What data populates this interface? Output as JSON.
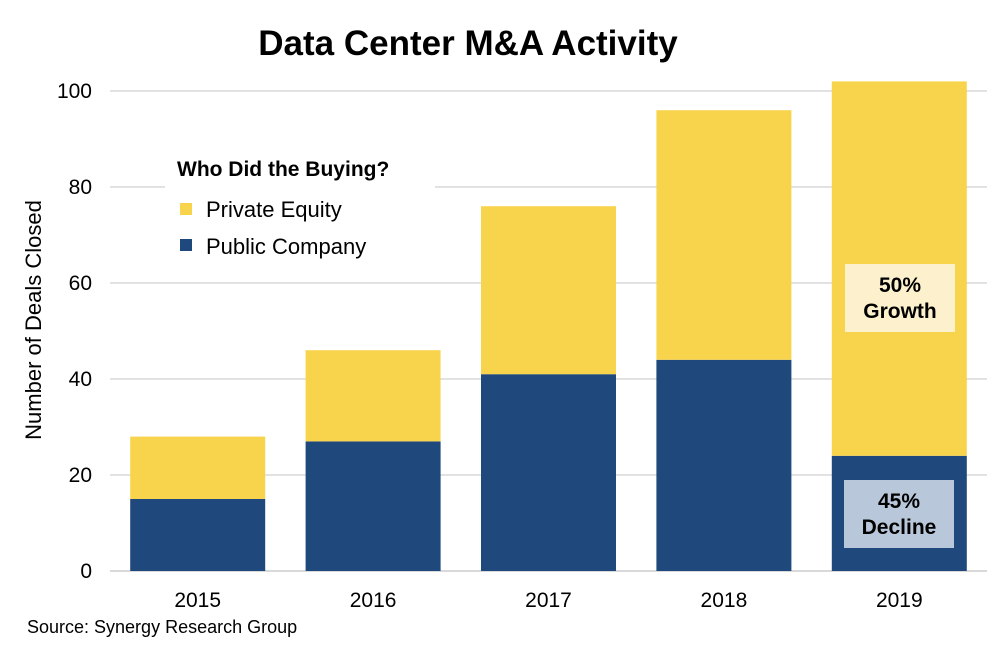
{
  "chart_data": {
    "type": "bar",
    "stacked": true,
    "title": "Data Center M&A Activity",
    "xlabel": "",
    "ylabel": "Number of Deals Closed",
    "categories": [
      "2015",
      "2016",
      "2017",
      "2018",
      "2019"
    ],
    "series": [
      {
        "name": "Public Company",
        "color": "#1f497d",
        "values": [
          15,
          27,
          41,
          44,
          24
        ]
      },
      {
        "name": "Private Equity",
        "color": "#f8d44c",
        "values": [
          13,
          19,
          35,
          52,
          78
        ]
      }
    ],
    "totals": [
      28,
      46,
      76,
      96,
      102
    ],
    "ylim": [
      0,
      100
    ],
    "yticks": [
      0,
      20,
      40,
      60,
      80,
      100
    ],
    "grid": true,
    "gridline_color": "#d9d9d9",
    "legend": {
      "title": "Who Did the Buying?",
      "placement": "top-left",
      "items": [
        {
          "label": "Private Equity",
          "color": "#f8d44c"
        },
        {
          "label": "Public Company",
          "color": "#1f497d"
        }
      ]
    },
    "annotations": [
      {
        "category": "2019",
        "series": "Private Equity",
        "line1": "50%",
        "line2": "Growth",
        "background": "#fdf1cd"
      },
      {
        "category": "2019",
        "series": "Public Company",
        "line1": "45%",
        "line2": "Decline",
        "background": "#b8c7da"
      }
    ],
    "source": "Source: Synergy Research Group"
  }
}
